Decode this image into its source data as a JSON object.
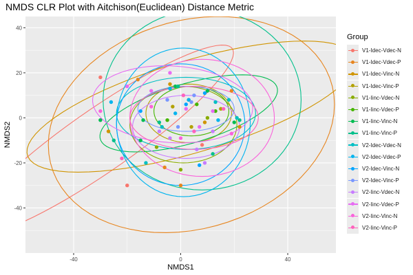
{
  "chart_data": {
    "type": "scatter",
    "title": "NMDS CLR Plot with Aitchison(Euclidean) Distance Metric",
    "xlabel": "NMDS1",
    "ylabel": "NMDS2",
    "xlim": [
      -58,
      58
    ],
    "ylim": [
      -60,
      45
    ],
    "xticks": [
      -40,
      0,
      40
    ],
    "yticks": [
      -40,
      -20,
      0,
      20,
      40
    ],
    "grid": true,
    "legend_position": "right",
    "legend_title": "Group",
    "series": [
      {
        "name": "V1-Idec-Vdec-N",
        "color": "#F8766D",
        "points": [
          [
            -30,
            18
          ],
          [
            -20,
            -30
          ],
          [
            8,
            -12
          ]
        ],
        "ellipse": {
          "cx": -30,
          "cy": -10,
          "rx": 64,
          "ry": 13,
          "angle": 40
        }
      },
      {
        "name": "V1-Idec-Vdec-P",
        "color": "#E7851E",
        "points": [
          [
            -16,
            17
          ],
          [
            -6,
            -22
          ],
          [
            0,
            -30
          ],
          [
            19,
            12
          ]
        ],
        "ellipse": {
          "cx": 4,
          "cy": -3,
          "rx": 56,
          "ry": 45,
          "angle": 30
        }
      },
      {
        "name": "V1-Idec-Vinc-N",
        "color": "#D09400",
        "points": [
          [
            -27,
            -6
          ],
          [
            -4,
            15
          ],
          [
            9,
            -2
          ],
          [
            22,
            -4
          ]
        ],
        "ellipse": {
          "cx": 4,
          "cy": 5,
          "rx": 65,
          "ry": 20,
          "angle": 20
        }
      },
      {
        "name": "V1-Idec-Vinc-P",
        "color": "#B2A100",
        "points": [
          [
            -3,
            5
          ],
          [
            4,
            -4
          ],
          [
            15,
            4
          ]
        ],
        "ellipse": {
          "cx": 3,
          "cy": 2,
          "rx": 16,
          "ry": 13,
          "angle": 0
        }
      },
      {
        "name": "V1-Iinc-Vdec-N",
        "color": "#89AC00",
        "points": [
          [
            3,
            8
          ],
          [
            -9,
            -13
          ],
          [
            0,
            -23
          ],
          [
            10,
            0
          ]
        ],
        "ellipse": {
          "cx": 1,
          "cy": -3,
          "rx": 20,
          "ry": 17,
          "angle": 0
        }
      },
      {
        "name": "V1-Iinc-Vdec-P",
        "color": "#45B500",
        "points": [
          [
            -5,
            -1
          ],
          [
            6,
            6
          ],
          [
            13,
            3
          ]
        ],
        "ellipse": {
          "cx": 4,
          "cy": 3,
          "rx": 14,
          "ry": 11,
          "angle": 0
        }
      },
      {
        "name": "V1-Iinc-Vinc-N",
        "color": "#00BC51",
        "points": [
          [
            -30,
            -1
          ],
          [
            -15,
            -10
          ],
          [
            -14,
            -1
          ],
          [
            10,
            12
          ],
          [
            20,
            -2
          ],
          [
            -2,
            14
          ]
        ],
        "ellipse": {
          "cx": 3,
          "cy": 2,
          "rx": 35,
          "ry": 13,
          "angle": 20
        }
      },
      {
        "name": "V1-Iinc-Vinc-P",
        "color": "#00C08B",
        "points": [
          [
            -25,
            -10
          ],
          [
            -1,
            14
          ],
          [
            12,
            -16
          ],
          [
            22,
            -1
          ],
          [
            -8,
            -2
          ]
        ],
        "ellipse": {
          "cx": 8,
          "cy": 8,
          "rx": 37,
          "ry": 40,
          "angle": 0
        }
      },
      {
        "name": "V2-Idec-Vdec-N",
        "color": "#00BFC4",
        "points": [
          [
            -13,
            -20
          ],
          [
            -7,
            -4
          ],
          [
            13,
            7
          ],
          [
            18,
            8
          ],
          [
            21,
            0
          ]
        ],
        "ellipse": {
          "cx": 2,
          "cy": 2,
          "rx": 26,
          "ry": 16,
          "angle": 0
        }
      },
      {
        "name": "V2-Idec-Vdec-P",
        "color": "#00B4EF",
        "points": [
          [
            -26,
            7
          ],
          [
            3,
            8
          ],
          [
            -2,
            2
          ],
          [
            -4,
            13
          ],
          [
            14,
            -1
          ]
        ],
        "ellipse": {
          "cx": 1,
          "cy": -2,
          "rx": 25,
          "ry": 33,
          "angle": 0
        }
      },
      {
        "name": "V2-Idec-Vinc-N",
        "color": "#00A5FF",
        "points": [
          [
            -15,
            3
          ],
          [
            7,
            -21
          ],
          [
            2,
            6
          ],
          [
            9,
            11
          ]
        ],
        "ellipse": {
          "cx": 0,
          "cy": -3,
          "rx": 24,
          "ry": 27,
          "angle": 0
        }
      },
      {
        "name": "V2-Idec-Vinc-P",
        "color": "#7997FF",
        "points": [
          [
            -5,
            8
          ],
          [
            5,
            10
          ],
          [
            -1,
            -4
          ],
          [
            4,
            7
          ]
        ],
        "ellipse": {
          "cx": 2,
          "cy": 4,
          "rx": 18,
          "ry": 10,
          "angle": 0
        }
      },
      {
        "name": "V2-Iinc-Vdec-N",
        "color": "#C77CFF",
        "points": [
          [
            -8,
            -6
          ],
          [
            -4,
            -9
          ],
          [
            6,
            -14
          ],
          [
            9,
            -20
          ],
          [
            12,
            -6
          ]
        ],
        "ellipse": {
          "cx": 2,
          "cy": -4,
          "rx": 20,
          "ry": 14,
          "angle": 0
        }
      },
      {
        "name": "V2-Iinc-Vdec-P",
        "color": "#E76BF3",
        "points": [
          [
            -20,
            14
          ],
          [
            -11,
            12
          ],
          [
            -4,
            20
          ],
          [
            2,
            4
          ],
          [
            7,
            -4
          ],
          [
            12,
            3
          ]
        ],
        "ellipse": {
          "cx": -3,
          "cy": 6,
          "rx": 30,
          "ry": 17,
          "angle": -5
        }
      },
      {
        "name": "V2-Iinc-Vinc-N",
        "color": "#FA62DB",
        "points": [
          [
            -30,
            3
          ],
          [
            -11,
            5
          ],
          [
            0,
            -9
          ],
          [
            19,
            -7
          ]
        ],
        "ellipse": {
          "cx": 8,
          "cy": 0,
          "rx": 27,
          "ry": 26,
          "angle": 0
        }
      },
      {
        "name": "V2-Iinc-Vinc-P",
        "color": "#FF62BC",
        "points": [
          [
            -22,
            -18
          ],
          [
            1,
            10
          ],
          [
            5,
            -6
          ],
          [
            16,
            4
          ]
        ],
        "ellipse": {
          "cx": 5,
          "cy": 0,
          "rx": 24,
          "ry": 14,
          "angle": 0
        }
      }
    ]
  }
}
